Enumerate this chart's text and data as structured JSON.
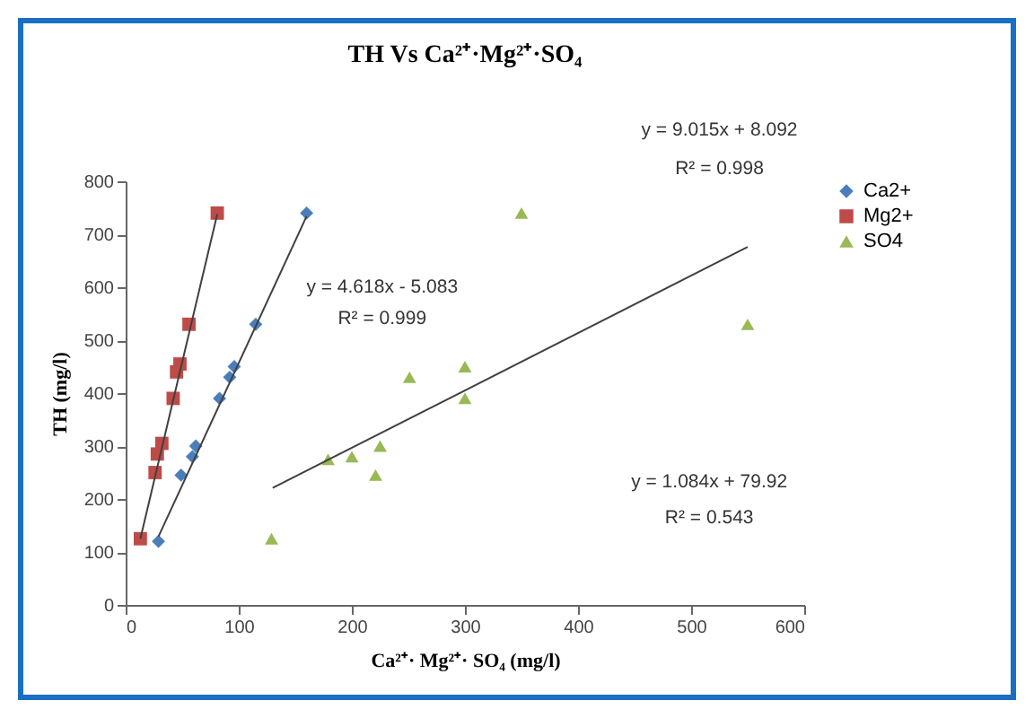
{
  "chart_data": {
    "type": "scatter",
    "title": "TH Vs Ca²⁺·Mg²⁺·SO₄",
    "xlabel": "Ca²⁺· Mg²⁺· SO₄ (mg/l)",
    "ylabel": "TH (mg/l)",
    "xlim": [
      0,
      600
    ],
    "xticks": [
      0,
      100,
      200,
      300,
      400,
      500,
      600
    ],
    "ylim": [
      0,
      800
    ],
    "yticks": [
      0,
      100,
      200,
      300,
      400,
      500,
      600,
      700,
      800
    ],
    "grid": false,
    "legend": "right",
    "series": [
      {
        "name": "Ca2+",
        "color": "#4a7ebb",
        "marker": "diamond",
        "x": [
          29,
          49,
          59,
          62,
          83,
          92,
          96,
          115,
          160
        ],
        "values": [
          120,
          245,
          280,
          300,
          390,
          430,
          450,
          530,
          740
        ]
      },
      {
        "name": "Mg2+",
        "color": "#be4b48",
        "marker": "square",
        "x": [
          13,
          26,
          28,
          32,
          42,
          45,
          48,
          56,
          81
        ],
        "values": [
          125,
          250,
          285,
          305,
          390,
          440,
          455,
          530,
          740
        ]
      },
      {
        "name": "SO4",
        "color": "#98b954",
        "marker": "triangle",
        "x": [
          129,
          179,
          200,
          221,
          225,
          251,
          300,
          300,
          350,
          550
        ],
        "values": [
          125,
          275,
          280,
          245,
          300,
          430,
          450,
          390,
          740,
          530
        ]
      },
      {
        "type": "line",
        "color": "#404040",
        "x": [
          29,
          160
        ],
        "values": [
          129,
          734
        ]
      },
      {
        "type": "line",
        "color": "#404040",
        "x": [
          13,
          81
        ],
        "values": [
          125,
          738
        ]
      },
      {
        "type": "line",
        "color": "#404040",
        "x": [
          130,
          550
        ],
        "values": [
          221,
          676
        ]
      }
    ],
    "annotations": [
      "y = 4.618x - 5.083",
      "R² = 0.999",
      "y = 9.015x + 8.092",
      "R² = 0.998",
      "y = 1.084x + 79.92",
      "R² = 0.543"
    ]
  }
}
